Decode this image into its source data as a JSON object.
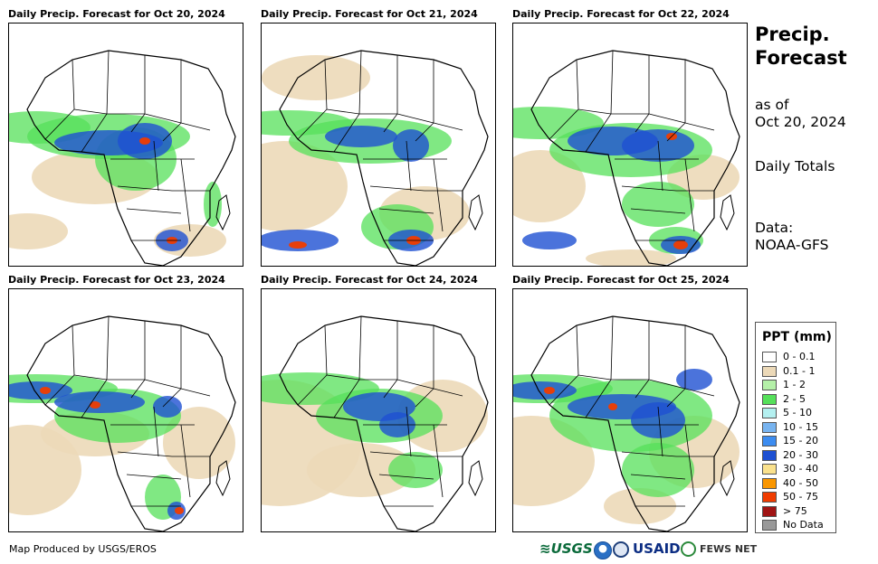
{
  "panels": [
    {
      "title": "Daily Precip. Forecast for Oct 20, 2024"
    },
    {
      "title": "Daily Precip. Forecast for Oct 21, 2024"
    },
    {
      "title": "Daily Precip. Forecast for Oct 22, 2024"
    },
    {
      "title": "Daily Precip. Forecast for Oct 23, 2024"
    },
    {
      "title": "Daily Precip. Forecast for Oct 24, 2024"
    },
    {
      "title": "Daily Precip. Forecast for Oct 25, 2024"
    }
  ],
  "side": {
    "title_line1": "Precip.",
    "title_line2": "Forecast",
    "asof_line1": "as of",
    "asof_line2": "Oct 20, 2024",
    "daily": "Daily Totals",
    "data_line1": "Data:",
    "data_line2": "NOAA-GFS"
  },
  "legend": {
    "title": "PPT (mm)",
    "items": [
      {
        "label": "0 - 0.1",
        "color": "#ffffff"
      },
      {
        "label": "0.1 - 1",
        "color": "#ecd9b8"
      },
      {
        "label": "1 - 2",
        "color": "#b4f0a8"
      },
      {
        "label": "2 - 5",
        "color": "#55e05a"
      },
      {
        "label": "5 - 10",
        "color": "#b4f0f0"
      },
      {
        "label": "10 - 15",
        "color": "#78b4f0"
      },
      {
        "label": "15 - 20",
        "color": "#3c8cf0"
      },
      {
        "label": "20 - 30",
        "color": "#1e50d2"
      },
      {
        "label": "30 - 40",
        "color": "#fae18c"
      },
      {
        "label": "40 - 50",
        "color": "#fa9600"
      },
      {
        "label": "50 - 75",
        "color": "#f03c00"
      },
      {
        "label": "> 75",
        "color": "#a01414"
      },
      {
        "label": "No Data",
        "color": "#999999"
      }
    ]
  },
  "footer": {
    "credit": "Map Produced by USGS/EROS",
    "logos": {
      "usgs": "≋USGS",
      "usaid": "USAID",
      "fews": "FEWS NET"
    }
  }
}
